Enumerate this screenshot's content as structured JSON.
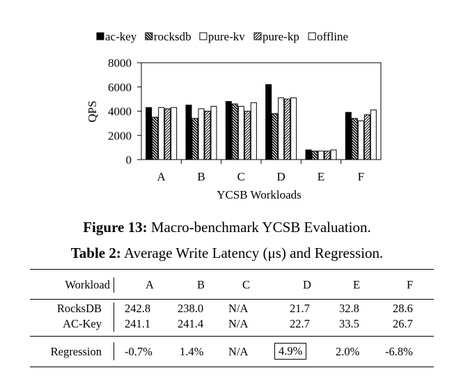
{
  "chart_data": {
    "type": "bar",
    "categories": [
      "A",
      "B",
      "C",
      "D",
      "E",
      "F"
    ],
    "series": [
      {
        "name": "ac-key",
        "pattern": "solid",
        "values": [
          4300,
          4500,
          4800,
          6200,
          800,
          3900
        ]
      },
      {
        "name": "rocksdb",
        "pattern": "backslash",
        "values": [
          3500,
          3400,
          4600,
          3800,
          700,
          3400
        ]
      },
      {
        "name": "pure-kv",
        "pattern": "empty",
        "values": [
          4300,
          4200,
          4400,
          5100,
          700,
          3200
        ]
      },
      {
        "name": "pure-kp",
        "pattern": "slash",
        "values": [
          4200,
          4000,
          4000,
          5000,
          700,
          3700
        ]
      },
      {
        "name": "offline",
        "pattern": "empty",
        "values": [
          4300,
          4400,
          4700,
          5100,
          800,
          4100
        ]
      }
    ],
    "xlabel": "YCSB Workloads",
    "ylabel": "QPS",
    "ylim": [
      0,
      8000
    ],
    "yticks": [
      0,
      2000,
      4000,
      6000,
      8000
    ],
    "legend": "top",
    "grid": false
  },
  "figure_caption": {
    "label": "Figure 13:",
    "text": " Macro-benchmark YCSB Evaluation."
  },
  "table_caption": {
    "label": "Table 2:",
    "text": " Average Write Latency (μs) and Regression."
  },
  "table": {
    "header": [
      "Workload",
      "A",
      "B",
      "C",
      "D",
      "E",
      "F"
    ],
    "rows": [
      [
        "RocksDB",
        "242.8",
        "238.0",
        "N/A",
        "21.7",
        "32.8",
        "28.6"
      ],
      [
        "AC-Key",
        "241.1",
        "241.4",
        "N/A",
        "22.7",
        "33.5",
        "26.7"
      ]
    ],
    "regression": [
      "Regression",
      "-0.7%",
      "1.4%",
      "N/A",
      "4.9%",
      "2.0%",
      "-6.8%"
    ],
    "highlighted_column": "D"
  }
}
